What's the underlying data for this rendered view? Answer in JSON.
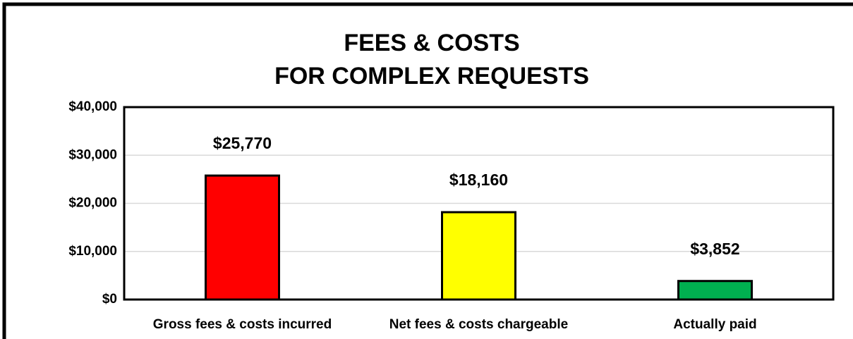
{
  "chart_data": {
    "type": "bar",
    "title": [
      "FEES & COSTS",
      "FOR COMPLEX REQUESTS"
    ],
    "categories": [
      "Gross fees & costs incurred",
      "Net fees & costs chargeable",
      "Actually paid"
    ],
    "values": [
      25770,
      18160,
      3852
    ],
    "value_labels": [
      "$25,770",
      "$18,160",
      "$3,852"
    ],
    "colors": [
      "#ff0000",
      "#ffff00",
      "#00b050"
    ],
    "ylim": [
      0,
      40000
    ],
    "yticks": [
      {
        "value": 0,
        "label": "$0"
      },
      {
        "value": 10000,
        "label": "$10,000"
      },
      {
        "value": 20000,
        "label": "$20,000"
      },
      {
        "value": 30000,
        "label": "$30,000"
      },
      {
        "value": 40000,
        "label": "$40,000"
      }
    ],
    "grid": true
  }
}
